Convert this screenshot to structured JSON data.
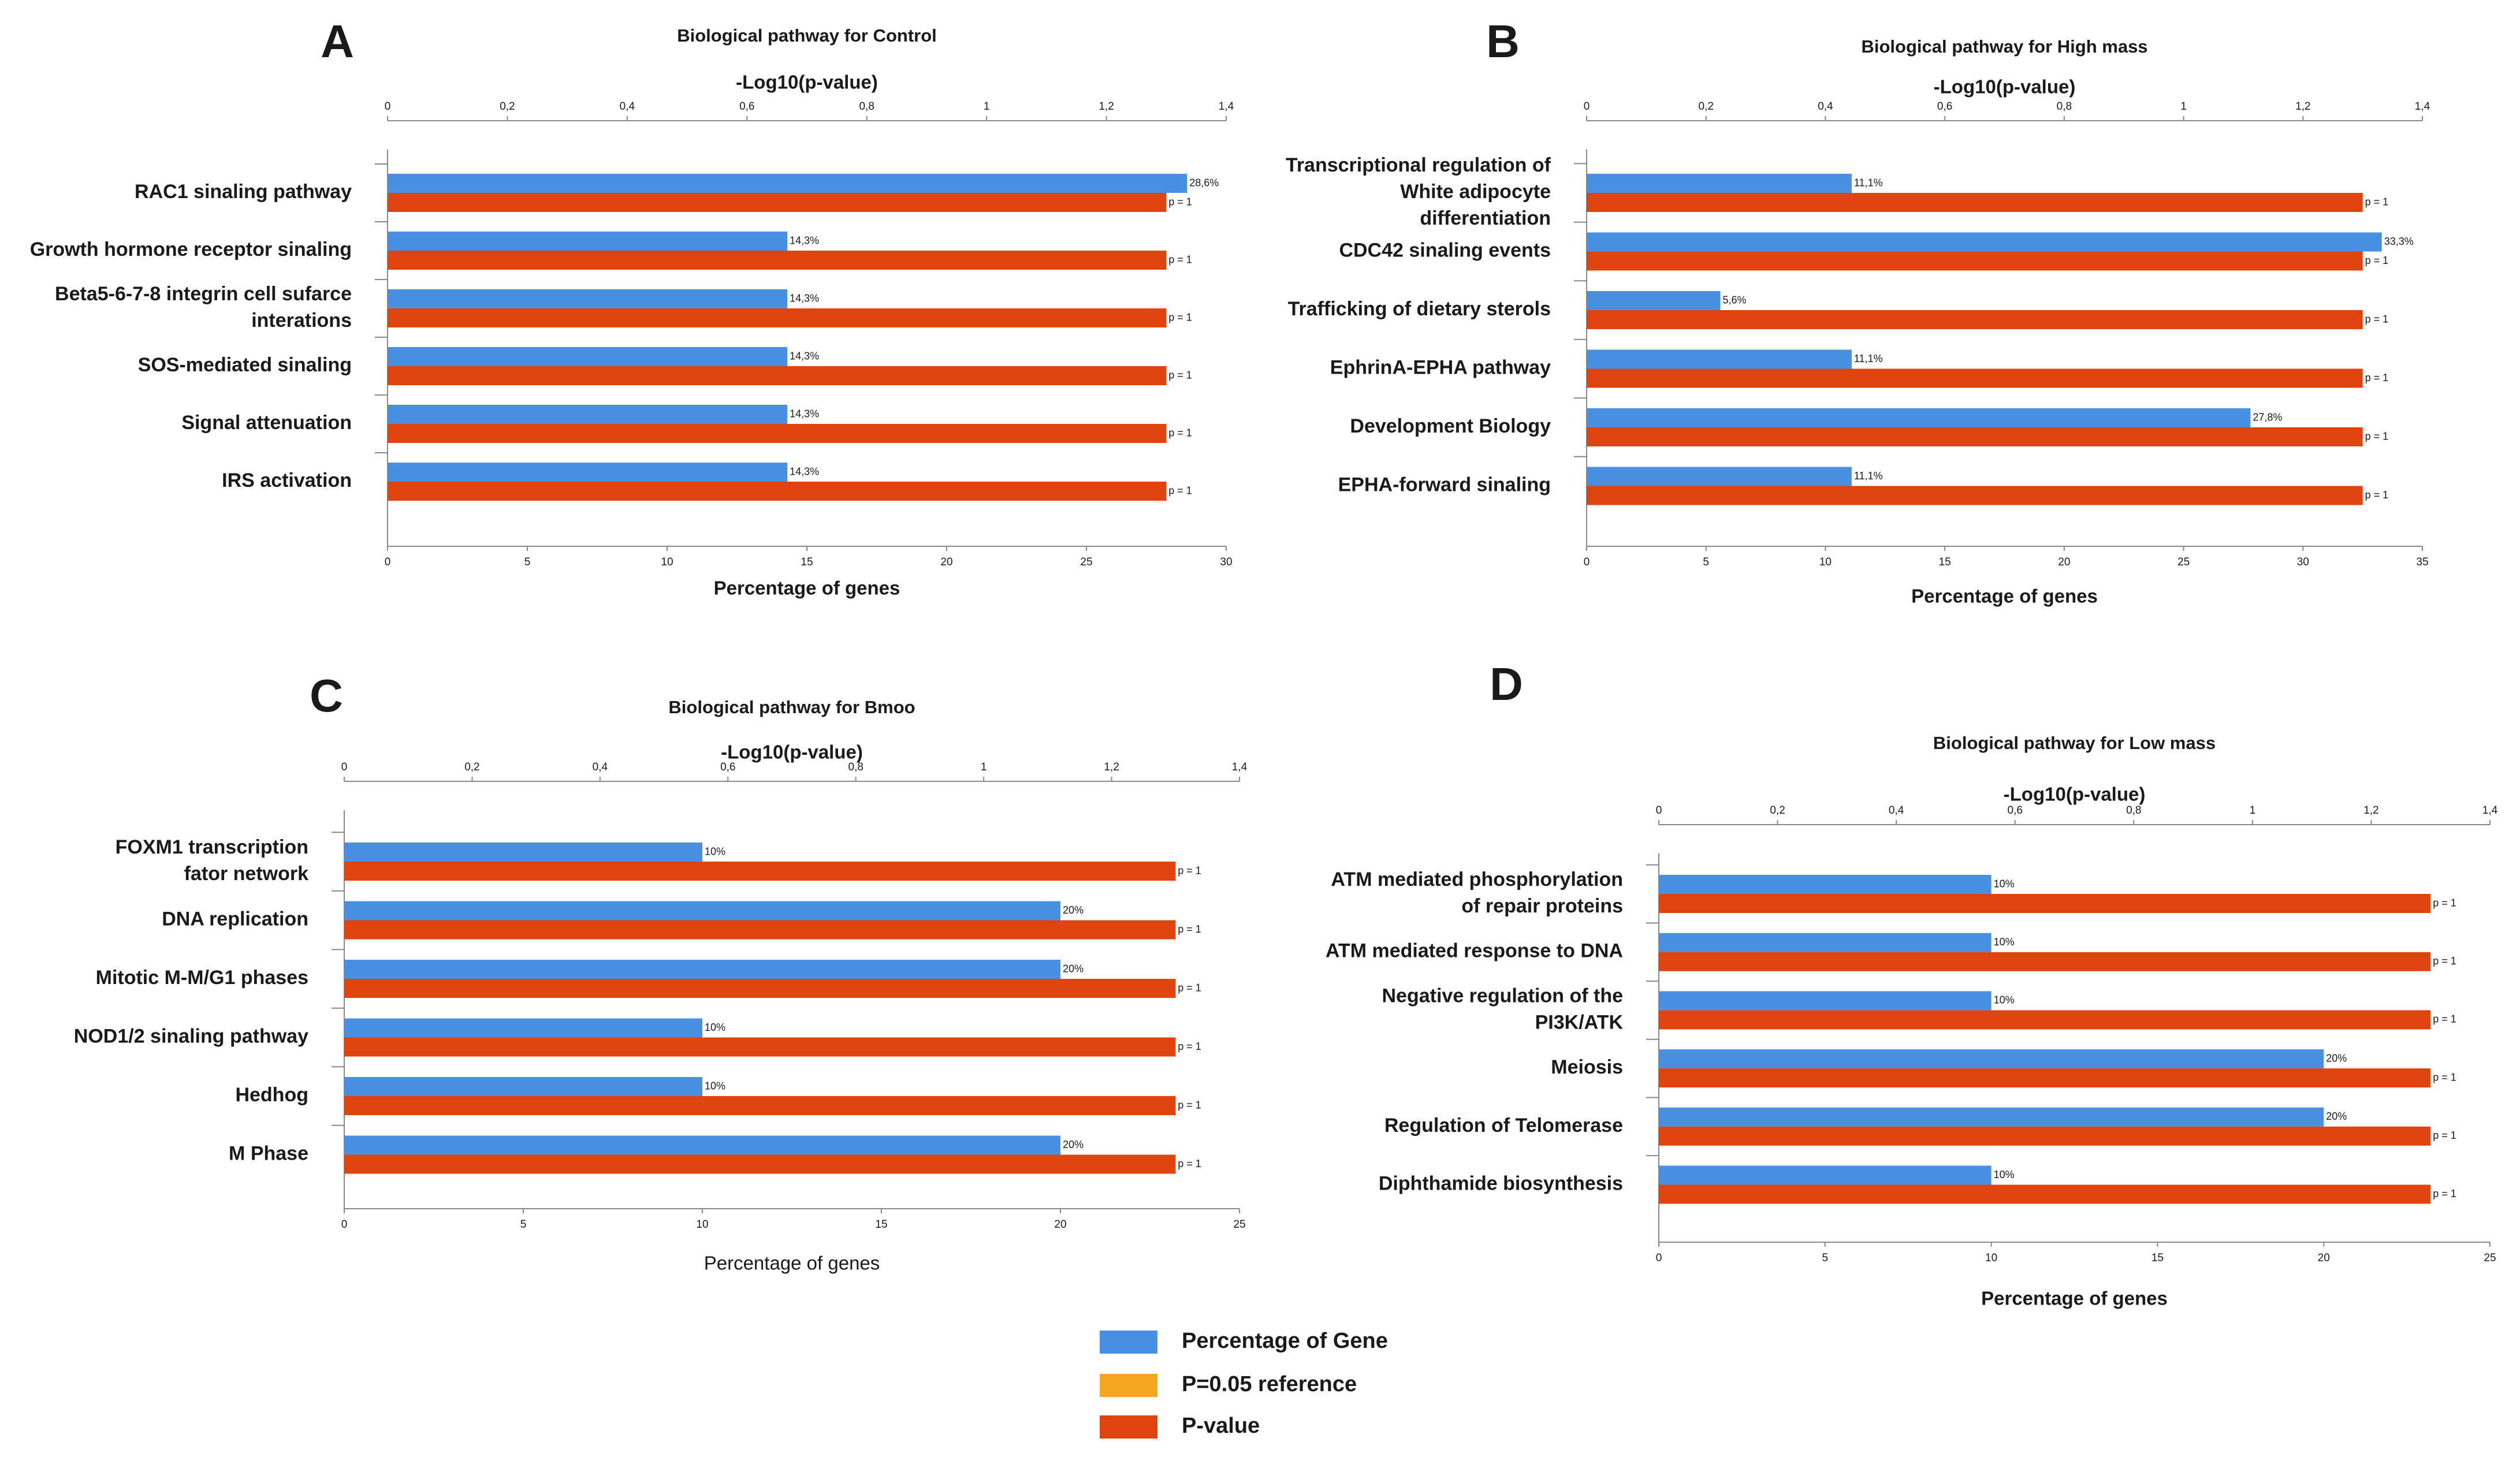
{
  "chart_data": [
    {
      "type": "bar",
      "panel": "A",
      "title": "Biological pathway for Control",
      "x2label": "-Log10(p-value)",
      "xlabel": "Percentage of genes",
      "categories": [
        "RAC1 sinaling pathway",
        "Growth hormone receptor sinaling",
        "Beta5-6-7-8 integrin cell sufarce\ninterations",
        "SOS-mediated sinaling",
        "Signal attenuation",
        "IRS activation"
      ],
      "series": [
        {
          "color": "#4a90e2",
          "values": [
            28.6,
            14.3,
            14.3,
            14.3,
            14.3,
            14.3
          ],
          "value_labels": [
            "28,6%",
            "14,3%",
            "14,3%",
            "14,3%",
            "14,3%",
            "14,3%"
          ]
        },
        {
          "color": "#e0440e",
          "axis": "x2",
          "values": [
            1.3,
            1.3,
            1.3,
            1.3,
            1.3,
            1.3
          ],
          "value_labels": [
            "p = 1",
            "p = 1",
            "p = 1",
            "p = 1",
            "p = 1",
            "p = 1"
          ]
        }
      ],
      "xlim": [
        0,
        30
      ],
      "xticks": [
        0,
        5,
        10,
        15,
        20,
        25,
        30
      ],
      "x2lim": [
        0,
        1.4
      ],
      "x2ticks": [
        0,
        {
          "value": 0.2,
          "label": "0,2"
        },
        {
          "value": 0.4,
          "label": "0,4"
        },
        {
          "value": 0.6,
          "label": "0,6"
        },
        {
          "value": 0.8,
          "label": "0,8"
        },
        1,
        {
          "value": 1.2,
          "label": "1,2"
        },
        {
          "value": 1.4,
          "label": "1,4"
        }
      ]
    },
    {
      "type": "bar",
      "panel": "B",
      "title": "Biological pathway for High mass",
      "x2label": "-Log10(p-value)",
      "xlabel": "Percentage of genes",
      "categories": [
        "Transcriptional regulation of\nWhite adipocyte\ndifferentiation",
        "CDC42 sinaling events",
        "Trafficking of dietary sterols",
        "EphrinA-EPHA pathway",
        "Development Biology",
        "EPHA-forward sinaling"
      ],
      "series": [
        {
          "color": "#4a90e2",
          "values": [
            11.1,
            33.3,
            5.6,
            11.1,
            27.8,
            11.1
          ],
          "value_labels": [
            "11,1%",
            "33,3%",
            "5,6%",
            "11,1%",
            "27,8%",
            "11,1%"
          ]
        },
        {
          "color": "#e0440e",
          "axis": "x2",
          "values": [
            1.3,
            1.3,
            1.3,
            1.3,
            1.3,
            1.3
          ],
          "value_labels": [
            "p = 1",
            "p = 1",
            "p = 1",
            "p = 1",
            "p = 1",
            "p = 1"
          ]
        }
      ],
      "xlim": [
        0,
        35
      ],
      "xticks": [
        0,
        5,
        10,
        15,
        20,
        25,
        30,
        35
      ],
      "x2lim": [
        0,
        1.4
      ],
      "x2ticks": [
        0,
        {
          "value": 0.2,
          "label": "0,2"
        },
        {
          "value": 0.4,
          "label": "0,4"
        },
        {
          "value": 0.6,
          "label": "0,6"
        },
        {
          "value": 0.8,
          "label": "0,8"
        },
        1,
        {
          "value": 1.2,
          "label": "1,2"
        },
        {
          "value": 1.4,
          "label": "1,4"
        }
      ]
    },
    {
      "type": "bar",
      "panel": "C",
      "title": "Biological pathway for Bmoo",
      "x2label": "-Log10(p-value)",
      "xlabel": "Percentage of genes",
      "categories": [
        "FOXM1 transcription\nfator network",
        "DNA replication",
        "Mitotic M-M/G1 phases",
        "NOD1/2 sinaling pathway",
        "Hedhog",
        "M Phase"
      ],
      "series": [
        {
          "color": "#4a90e2",
          "values": [
            10,
            20,
            20,
            10,
            10,
            20
          ],
          "value_labels": [
            "10%",
            "20%",
            "20%",
            "10%",
            "10%",
            "20%"
          ]
        },
        {
          "color": "#e0440e",
          "axis": "x2",
          "values": [
            1.3,
            1.3,
            1.3,
            1.3,
            1.3,
            1.3
          ],
          "value_labels": [
            "p = 1",
            "p = 1",
            "p = 1",
            "p = 1",
            "p = 1",
            "p = 1"
          ]
        }
      ],
      "xlim": [
        0,
        25
      ],
      "xticks": [
        0,
        5,
        10,
        15,
        20,
        25
      ],
      "x2lim": [
        0,
        1.4
      ],
      "x2ticks": [
        0,
        {
          "value": 0.2,
          "label": "0,2"
        },
        {
          "value": 0.4,
          "label": "0,4"
        },
        {
          "value": 0.6,
          "label": "0,6"
        },
        {
          "value": 0.8,
          "label": "0,8"
        },
        1,
        {
          "value": 1.2,
          "label": "1,2"
        },
        {
          "value": 1.4,
          "label": "1,4"
        }
      ]
    },
    {
      "type": "bar",
      "panel": "D",
      "title": "Biological pathway for Low mass",
      "x2label": "-Log10(p-value)",
      "xlabel": "Percentage of genes",
      "categories": [
        "ATM mediated phosphorylation\nof repair proteins",
        "ATM mediated response to DNA",
        "Negative regulation of the\nPI3K/ATK",
        "Meiosis",
        "Regulation of Telomerase",
        "Diphthamide biosynthesis"
      ],
      "series": [
        {
          "color": "#4a90e2",
          "values": [
            10,
            10,
            10,
            20,
            20,
            10
          ],
          "value_labels": [
            "10%",
            "10%",
            "10%",
            "20%",
            "20%",
            "10%"
          ]
        },
        {
          "color": "#e0440e",
          "axis": "x2",
          "values": [
            1.3,
            1.3,
            1.3,
            1.3,
            1.3,
            1.3
          ],
          "value_labels": [
            "p = 1",
            "p = 1",
            "p = 1",
            "p = 1",
            "p = 1",
            "p = 1"
          ]
        }
      ],
      "xlim": [
        0,
        25
      ],
      "xticks": [
        0,
        5,
        10,
        15,
        20,
        25
      ],
      "x2lim": [
        0,
        1.4
      ],
      "x2ticks": [
        0,
        {
          "value": 0.2,
          "label": "0,2"
        },
        {
          "value": 0.4,
          "label": "0,4"
        },
        {
          "value": 0.6,
          "label": "0,6"
        },
        {
          "value": 0.8,
          "label": "0,8"
        },
        1,
        {
          "value": 1.2,
          "label": "1,2"
        },
        {
          "value": 1.4,
          "label": "1,4"
        }
      ]
    }
  ],
  "legend": [
    {
      "name": "Percentage of Gene",
      "color": "#4a90e2"
    },
    {
      "name": "P=0.05 reference",
      "color": "#f5a623"
    },
    {
      "name": "P-value",
      "color": "#e0440e"
    }
  ]
}
